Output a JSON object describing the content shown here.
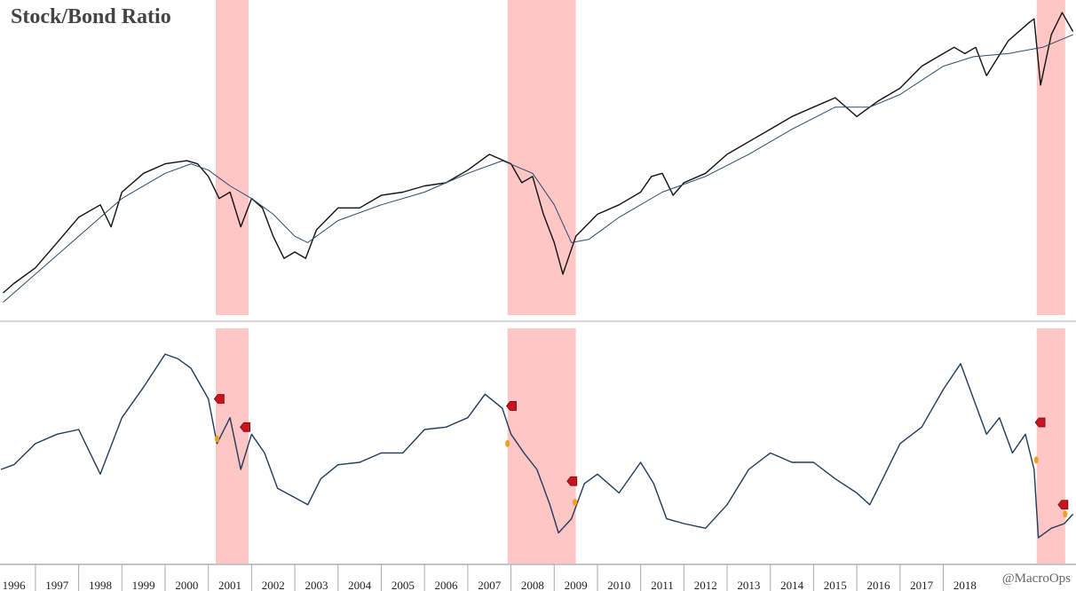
{
  "chart_data": [
    {
      "type": "line",
      "title": "Stock/Bond Ratio",
      "xlim": [
        1996.18,
        2021.07
      ],
      "ylim": [
        0,
        100
      ],
      "shaded_ranges": [
        [
          2001.17,
          2001.93
        ],
        [
          2007.92,
          2009.5
        ],
        [
          2020.16,
          2020.82
        ]
      ],
      "shade_color": "#ffbcbc",
      "series": [
        {
          "color": "#111111",
          "x": [
            1996.25,
            1996.5,
            1997,
            1997.5,
            1998,
            1998.5,
            1998.75,
            1999,
            1999.5,
            2000,
            2000.5,
            2000.75,
            2001,
            2001.25,
            2001.5,
            2001.75,
            2002,
            2002.25,
            2002.5,
            2002.75,
            2003,
            2003.25,
            2003.5,
            2004,
            2004.5,
            2005,
            2005.5,
            2006,
            2006.5,
            2007,
            2007.5,
            2008,
            2008.25,
            2008.5,
            2008.75,
            2009,
            2009.2,
            2009.5,
            2010,
            2010.5,
            2011,
            2011.25,
            2011.5,
            2011.75,
            2012,
            2012.5,
            2013,
            2013.5,
            2014,
            2014.5,
            2015,
            2015.5,
            2016,
            2016.5,
            2017,
            2017.5,
            2018,
            2018.25,
            2018.5,
            2018.75,
            2019,
            2019.5,
            2020,
            2020.1,
            2020.25,
            2020.5,
            2020.75,
            2021
          ],
          "values": [
            7,
            10,
            15,
            23,
            31,
            35,
            28,
            39,
            45,
            48,
            49,
            48,
            44,
            37,
            39,
            28,
            37,
            34,
            25,
            18,
            20,
            18,
            27,
            34,
            34,
            38,
            39,
            41,
            42,
            46,
            51,
            48,
            42,
            44,
            32,
            23,
            13,
            25,
            32,
            35,
            39,
            44,
            45,
            38,
            42,
            45,
            51,
            55,
            59,
            63,
            66,
            69,
            63,
            68,
            72,
            79,
            83,
            85,
            83,
            85,
            76,
            87,
            93,
            94,
            73,
            89,
            96,
            90
          ]
        },
        {
          "color": "#2a4a6a",
          "x": [
            1996.25,
            1997,
            1998,
            1999,
            2000,
            2000.6,
            2001,
            2001.5,
            2002,
            2002.5,
            2003,
            2003.3,
            2004,
            2005,
            2006,
            2007,
            2007.8,
            2008.5,
            2009,
            2009.4,
            2009.8,
            2010.5,
            2011.5,
            2012.5,
            2013.5,
            2014.5,
            2015.5,
            2016.3,
            2017,
            2018,
            2018.7,
            2019.5,
            2020.3,
            2021
          ],
          "values": [
            4,
            13,
            25,
            37,
            45,
            48,
            46,
            41,
            37,
            32,
            25,
            23,
            30,
            35,
            39,
            45,
            49,
            45,
            35,
            23,
            24,
            31,
            39,
            44,
            51,
            59,
            66,
            66,
            70,
            79,
            82,
            83,
            85,
            89
          ]
        }
      ]
    },
    {
      "type": "line",
      "xlim": [
        1996.18,
        2021.07
      ],
      "ylim": [
        0,
        100
      ],
      "xticks": [
        1996,
        1997,
        1998,
        1999,
        2000,
        2001,
        2002,
        2003,
        2004,
        2005,
        2006,
        2007,
        2008,
        2009,
        2010,
        2011,
        2012,
        2013,
        2014,
        2015,
        2016,
        2017,
        2018
      ],
      "annotation": "@MacroOps",
      "series": [
        {
          "color": "#1f3b5a",
          "x": [
            1996.2,
            1996.5,
            1997,
            1997.5,
            1998,
            1998.5,
            1999,
            1999.5,
            2000,
            2000.3,
            2000.6,
            2001,
            2001.2,
            2001.5,
            2001.75,
            2002,
            2002.3,
            2002.6,
            2003,
            2003.3,
            2003.6,
            2004,
            2004.5,
            2005,
            2005.5,
            2006,
            2006.5,
            2007,
            2007.4,
            2007.8,
            2008,
            2008.3,
            2008.6,
            2008.9,
            2009.1,
            2009.4,
            2009.7,
            2010,
            2010.5,
            2011,
            2011.3,
            2011.6,
            2012,
            2012.5,
            2013,
            2013.5,
            2014,
            2014.5,
            2015,
            2015.5,
            2016,
            2016.3,
            2016.6,
            2017,
            2017.5,
            2018,
            2018.4,
            2018.7,
            2019,
            2019.3,
            2019.6,
            2019.9,
            2020.1,
            2020.2,
            2020.5,
            2020.8,
            2021
          ],
          "values": [
            40,
            42,
            51,
            55,
            57,
            38,
            62,
            75,
            89,
            87,
            83,
            70,
            51,
            62,
            40,
            55,
            47,
            32,
            28,
            25,
            36,
            42,
            43,
            47,
            47,
            57,
            58,
            62,
            72,
            66,
            55,
            47,
            40,
            25,
            13,
            19,
            34,
            38,
            30,
            43,
            34,
            19,
            17,
            15,
            25,
            40,
            47,
            43,
            43,
            36,
            30,
            25,
            36,
            51,
            58,
            74,
            85,
            70,
            55,
            62,
            47,
            55,
            40,
            11,
            15,
            17,
            21
          ]
        }
      ],
      "signals": {
        "color": "#c8141e",
        "x": [
          2001.26,
          2001.86,
          2008.02,
          2009.42,
          2020.25,
          2020.78
        ],
        "y": [
          70,
          58,
          67,
          35,
          60,
          25
        ]
      },
      "alerts": {
        "color": "#f0a020",
        "x": [
          2001.2,
          2007.92,
          2009.48,
          2020.15,
          2020.82
        ],
        "y": [
          53,
          51,
          26,
          44,
          21
        ]
      }
    }
  ]
}
